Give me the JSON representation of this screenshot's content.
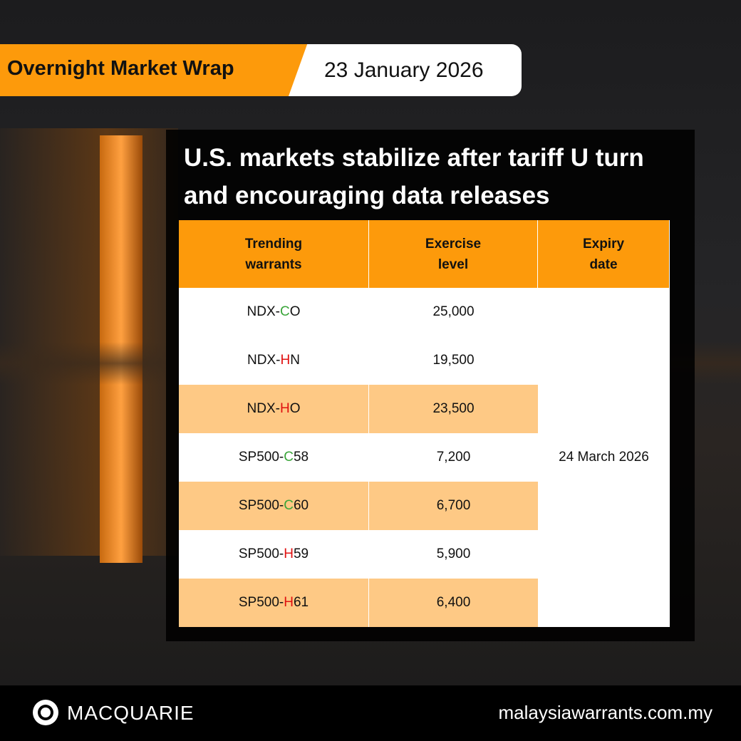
{
  "header": {
    "tag": "Overnight Market Wrap",
    "date": "23 January 2026"
  },
  "title_lines": [
    "U.S. markets stabilize after tariff U turn",
    "and encouraging data releases"
  ],
  "table": {
    "columns": [
      "Trending warrants",
      "Exercise level",
      "Expiry date"
    ],
    "rows": [
      {
        "warrant": [
          {
            "text": "NDX-"
          },
          {
            "text": "C",
            "color": "#3aa53a"
          },
          {
            "text": "O"
          }
        ],
        "exercise": "25,000",
        "shaded": false
      },
      {
        "warrant": [
          {
            "text": "NDX-"
          },
          {
            "text": "H",
            "color": "#e01010"
          },
          {
            "text": "N"
          }
        ],
        "exercise": "19,500",
        "shaded": false
      },
      {
        "warrant": [
          {
            "text": "NDX-"
          },
          {
            "text": "H",
            "color": "#e01010"
          },
          {
            "text": "O"
          }
        ],
        "exercise": "23,500",
        "shaded": true
      },
      {
        "warrant": [
          {
            "text": "SP500-"
          },
          {
            "text": "C",
            "color": "#3aa53a"
          },
          {
            "text": "58"
          }
        ],
        "exercise": "7,200",
        "shaded": false
      },
      {
        "warrant": [
          {
            "text": "SP500-"
          },
          {
            "text": "C",
            "color": "#3aa53a"
          },
          {
            "text": "60"
          }
        ],
        "exercise": "6,700",
        "shaded": true
      },
      {
        "warrant": [
          {
            "text": "SP500-"
          },
          {
            "text": "H",
            "color": "#e01010"
          },
          {
            "text": "59"
          }
        ],
        "exercise": "5,900",
        "shaded": false
      },
      {
        "warrant": [
          {
            "text": "SP500-"
          },
          {
            "text": "H",
            "color": "#e01010"
          },
          {
            "text": "61"
          }
        ],
        "exercise": "6,400",
        "shaded": true
      }
    ],
    "expiry": "24 March 2026"
  },
  "footer": {
    "brand": "MACQUARIE",
    "url": "malaysiawarrants.com.my"
  }
}
